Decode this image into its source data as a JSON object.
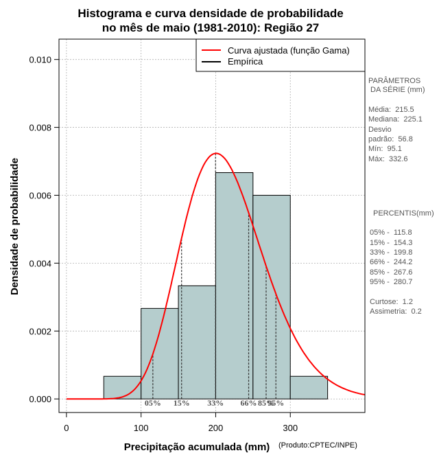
{
  "chart_data": {
    "type": "histogram",
    "title": "Histograma e curva densidade de probabilidade",
    "subtitle": "no mês de maio (1981-2010): Região 27",
    "xlabel": "Precipitação acumulada (mm)",
    "ylabel": "Densidade de probabilidade",
    "credit": "(Produto:CPTEC/INPE)",
    "xlim": [
      -10,
      400
    ],
    "ylim": [
      -0.0004,
      0.0106
    ],
    "x_ticks": [
      0,
      100,
      200,
      300
    ],
    "y_ticks": [
      0.0,
      0.002,
      0.004,
      0.006,
      0.008,
      0.01
    ],
    "y_tick_labels": [
      "0.000",
      "0.002",
      "0.004",
      "0.006",
      "0.008",
      "0.010"
    ],
    "grid": true,
    "bins": [
      {
        "start": 50,
        "end": 100,
        "density": 0.000667
      },
      {
        "start": 100,
        "end": 150,
        "density": 0.002667
      },
      {
        "start": 150,
        "end": 200,
        "density": 0.003333
      },
      {
        "start": 200,
        "end": 250,
        "density": 0.006667
      },
      {
        "start": 250,
        "end": 300,
        "density": 0.006
      },
      {
        "start": 300,
        "end": 350,
        "density": 0.000667
      }
    ],
    "gamma_fit": {
      "shape": 14.4,
      "scale": 14.97
    },
    "percentiles": [
      {
        "label": "05%",
        "value": 115.8
      },
      {
        "label": "15%",
        "value": 154.3
      },
      {
        "label": "33%",
        "value": 199.8
      },
      {
        "label": "66%",
        "value": 244.2
      },
      {
        "label": "85%",
        "value": 267.6
      },
      {
        "label": "95%",
        "value": 280.7
      }
    ],
    "legend": {
      "position": "top-right",
      "entries": [
        {
          "label": "Curva ajustada (função Gama)",
          "color": "#ff0000"
        },
        {
          "label": "Empírica",
          "color": "#000000"
        }
      ]
    },
    "colors": {
      "bar_fill": "#b5cdcd",
      "curve": "#ff0000",
      "grid": "#b0b0b0"
    }
  },
  "side_panel": {
    "params_title_1": "PARÂMETROS",
    "params_title_2": " DA SÉRIE (mm)",
    "media": "Média:  215.5",
    "mediana": "Mediana:  225.1",
    "desvio_1": "Desvio",
    "desvio_2": "padrão:  56.8",
    "min": "Mín:  95.1",
    "max": "Máx:  332.6",
    "percentis_title": "PERCENTIS(mm)",
    "p05": "05% -  115.8",
    "p15": "15% -  154.3",
    "p33": "33% -  199.8",
    "p66": "66% -  244.2",
    "p85": "85% -  267.6",
    "p95": "95% -  280.7",
    "curtose": "Curtose:  1.2",
    "assimetria": "Assimetria:  0.2"
  }
}
